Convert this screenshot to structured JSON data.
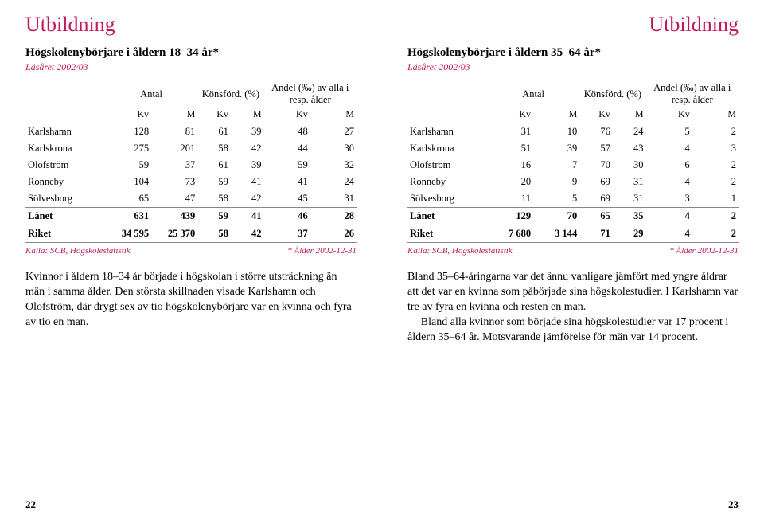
{
  "left": {
    "section": "Utbildning",
    "table": {
      "title": "Högskolenybörjare i åldern 18–34 år*",
      "subtitle": "Läsåret 2002/03",
      "groupHeaders": [
        "Antal",
        "Könsförd. (%)",
        "Andel (‰) av alla i resp. ålder"
      ],
      "subHeaders": [
        "",
        "Kv",
        "M",
        "Kv",
        "M",
        "Kv",
        "M"
      ],
      "rows": [
        {
          "label": "Karlshamn",
          "c": [
            "128",
            "81",
            "61",
            "39",
            "48",
            "27"
          ]
        },
        {
          "label": "Karlskrona",
          "c": [
            "275",
            "201",
            "58",
            "42",
            "44",
            "30"
          ]
        },
        {
          "label": "Olofström",
          "c": [
            "59",
            "37",
            "61",
            "39",
            "59",
            "32"
          ]
        },
        {
          "label": "Ronneby",
          "c": [
            "104",
            "73",
            "59",
            "41",
            "41",
            "24"
          ]
        },
        {
          "label": "Sölvesborg",
          "c": [
            "65",
            "47",
            "58",
            "42",
            "45",
            "31"
          ]
        }
      ],
      "county": {
        "label": "Länet",
        "c": [
          "631",
          "439",
          "59",
          "41",
          "46",
          "28"
        ]
      },
      "nation": {
        "label": "Riket",
        "c": [
          "34 595",
          "25 370",
          "58",
          "42",
          "37",
          "26"
        ]
      },
      "source": "Källa: SCB, Högskolestatistik",
      "footnote": "* Ålder 2002-12-31"
    },
    "para": "Kvinnor i åldern 18–34 år började i högskolan i större utsträckning än män i samma ålder. Den största skillnaden visade Karlshamn och Olofström, där drygt sex av tio högskolenybörjare var en kvinna och fyra av tio en man.",
    "pageNum": "22"
  },
  "right": {
    "section": "Utbildning",
    "table": {
      "title": "Högskolenybörjare i åldern 35–64 år*",
      "subtitle": "Läsåret 2002/03",
      "groupHeaders": [
        "Antal",
        "Könsförd. (%)",
        "Andel (‰) av alla i resp. ålder"
      ],
      "subHeaders": [
        "",
        "Kv",
        "M",
        "Kv",
        "M",
        "Kv",
        "M"
      ],
      "rows": [
        {
          "label": "Karlshamn",
          "c": [
            "31",
            "10",
            "76",
            "24",
            "5",
            "2"
          ]
        },
        {
          "label": "Karlskrona",
          "c": [
            "51",
            "39",
            "57",
            "43",
            "4",
            "3"
          ]
        },
        {
          "label": "Olofström",
          "c": [
            "16",
            "7",
            "70",
            "30",
            "6",
            "2"
          ]
        },
        {
          "label": "Ronneby",
          "c": [
            "20",
            "9",
            "69",
            "31",
            "4",
            "2"
          ]
        },
        {
          "label": "Sölvesborg",
          "c": [
            "11",
            "5",
            "69",
            "31",
            "3",
            "1"
          ]
        }
      ],
      "county": {
        "label": "Länet",
        "c": [
          "129",
          "70",
          "65",
          "35",
          "4",
          "2"
        ]
      },
      "nation": {
        "label": "Riket",
        "c": [
          "7 680",
          "3 144",
          "71",
          "29",
          "4",
          "2"
        ]
      },
      "source": "Källa: SCB, Högskolestatistik",
      "footnote": "* Ålder 2002-12-31"
    },
    "para1": "Bland 35–64-åringarna var det ännu vanligare jämfört med yngre åldrar att det var en kvinna som påbörjade sina högskolestudier. I Karlshamn var tre av fyra en kvinna och resten en man.",
    "para2": "Bland alla kvinnor som började sina högskolestudier var 17 procent i åldern 35–64 år. Motsvarande jämförelse för män var 14 procent.",
    "pageNum": "23"
  }
}
